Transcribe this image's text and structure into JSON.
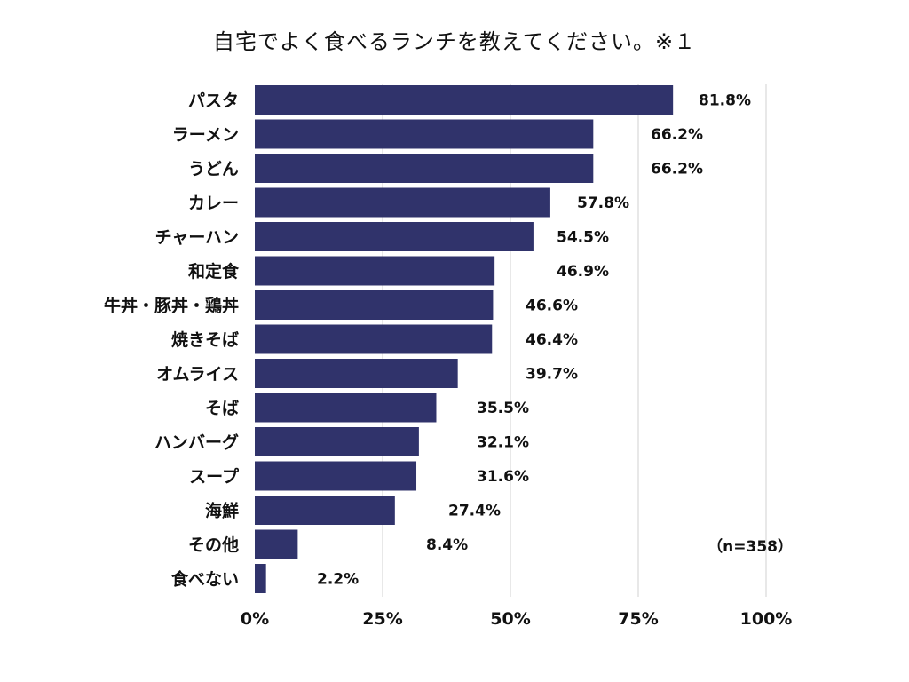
{
  "chart_data": {
    "type": "bar",
    "orientation": "horizontal",
    "title": "自宅でよく食べるランチを教えてください。※１",
    "categories": [
      "パスタ",
      "ラーメン",
      "うどん",
      "カレー",
      "チャーハン",
      "和定食",
      "牛丼・豚丼・鶏丼",
      "焼きそば",
      "オムライス",
      "そば",
      "ハンバーグ",
      "スープ",
      "海鮮",
      "その他",
      "食べない"
    ],
    "values": [
      81.8,
      66.2,
      66.2,
      57.8,
      54.5,
      46.9,
      46.6,
      46.4,
      39.7,
      35.5,
      32.1,
      31.6,
      27.4,
      8.4,
      2.2
    ],
    "value_labels": [
      "81.8%",
      "66.2%",
      "66.2%",
      "57.8%",
      "54.5%",
      "46.9%",
      "46.6%",
      "46.4%",
      "39.7%",
      "35.5%",
      "32.1%",
      "31.6%",
      "27.4%",
      "8.4%",
      "2.2%"
    ],
    "xlim": [
      0,
      100
    ],
    "x_ticks": [
      0,
      25,
      50,
      75,
      100
    ],
    "x_tick_labels": [
      "0%",
      "25%",
      "50%",
      "75%",
      "100%"
    ],
    "grid": "vertical",
    "bar_color": "#30336b",
    "note": "（n=358）"
  }
}
